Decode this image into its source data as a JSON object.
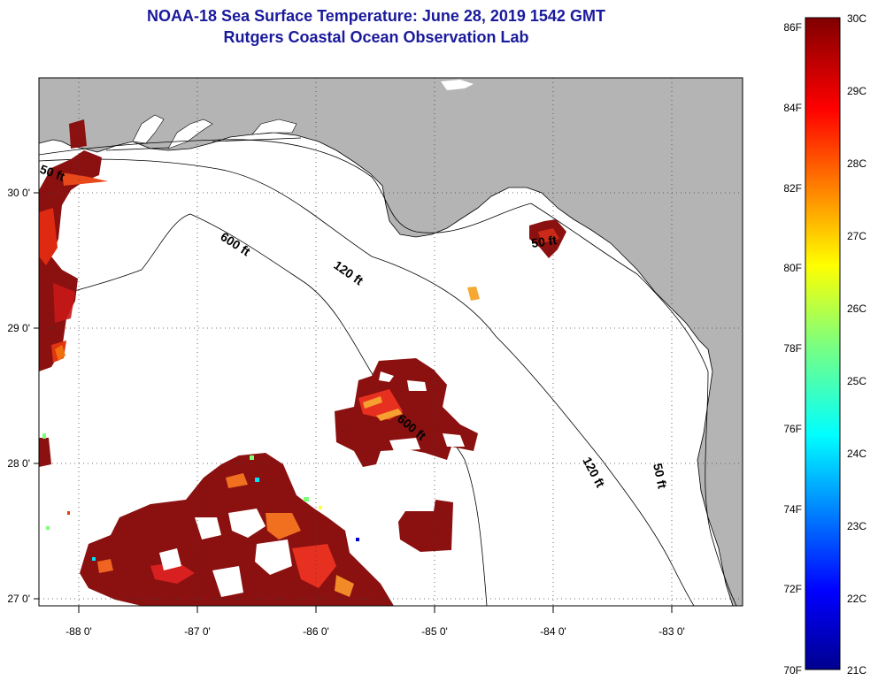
{
  "title": {
    "line1": "NOAA-18 Sea Surface Temperature:  June 28, 2019 1542 GMT",
    "line2": "Rutgers Coastal Ocean Observation Lab"
  },
  "map": {
    "lon_ticks": [
      {
        "value": -88,
        "label": "-88 0'"
      },
      {
        "value": -87,
        "label": "-87 0'"
      },
      {
        "value": -86,
        "label": "-86 0'"
      },
      {
        "value": -85,
        "label": "-85 0'"
      },
      {
        "value": -84,
        "label": "-84 0'"
      },
      {
        "value": -83,
        "label": "-83 0'"
      }
    ],
    "lat_ticks": [
      {
        "value": 30,
        "label": "30 0'"
      },
      {
        "value": 29,
        "label": "29 0'"
      },
      {
        "value": 28,
        "label": "28 0'"
      },
      {
        "value": 27,
        "label": "27 0'"
      }
    ],
    "contour_labels": [
      "50 ft",
      "600 ft",
      "120 ft",
      "50 ft",
      "600 ft",
      "120 ft",
      "50 ft"
    ],
    "colors": {
      "land": "#b4b4b4",
      "ocean_nodata": "#ffffff",
      "sst_main": "#8b1010"
    }
  },
  "colorbar": {
    "fahrenheit": [
      "86F",
      "84F",
      "82F",
      "80F",
      "78F",
      "76F",
      "74F",
      "72F",
      "70F"
    ],
    "celsius": [
      "30C",
      "29C",
      "28C",
      "27C",
      "26C",
      "25C",
      "24C",
      "23C",
      "22C",
      "21C"
    ],
    "range_c": [
      21,
      30
    ],
    "range_f": [
      70,
      86
    ],
    "colormap": "jet"
  }
}
